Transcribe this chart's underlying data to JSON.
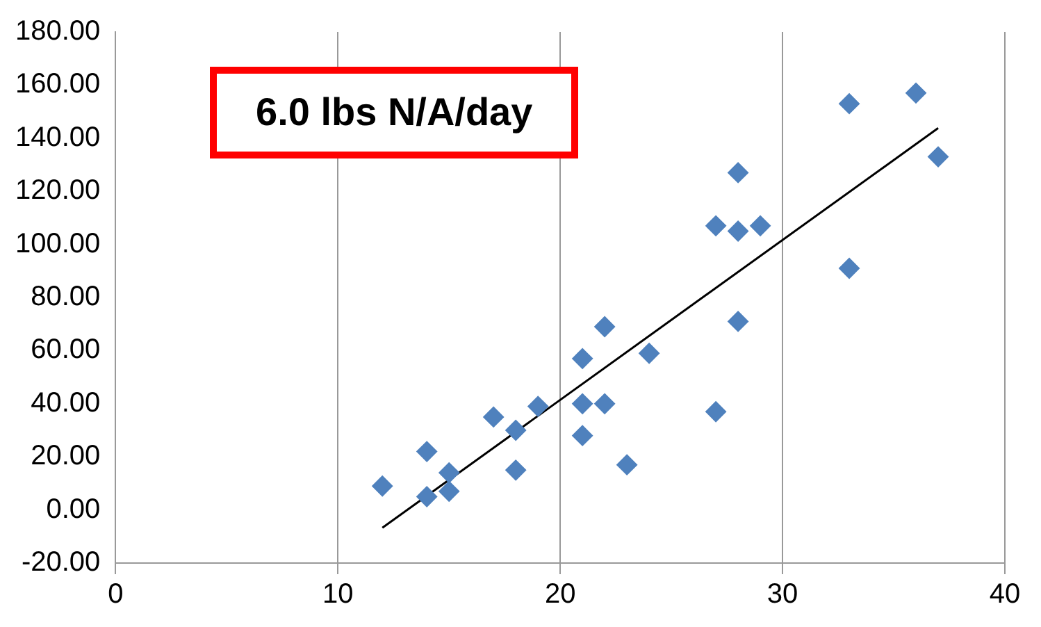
{
  "chart_data": {
    "type": "scatter",
    "annotations": [
      "6.0 lbs N/A/day"
    ],
    "x": [
      12,
      14,
      14,
      15,
      15,
      17,
      18,
      18,
      19,
      21,
      21,
      21,
      22,
      22,
      23,
      24,
      27,
      27,
      28,
      28,
      28,
      29,
      33,
      33,
      36,
      37
    ],
    "series": [
      {
        "color": "#4f81bd",
        "marker": "diamond",
        "values": [
          9,
          22,
          5,
          14,
          7,
          35,
          30,
          15,
          39,
          57,
          40,
          28,
          69,
          40,
          17,
          59,
          107,
          37,
          127,
          105,
          71,
          107,
          153,
          91,
          157,
          133
        ]
      },
      {
        "type": "line",
        "color": "#000000",
        "marker": "none",
        "x": [
          12,
          37
        ],
        "values": [
          -6.7,
          143.8
        ]
      }
    ],
    "xlim": [
      0,
      40
    ],
    "xticks": [
      0,
      10,
      20,
      30,
      40
    ],
    "ylim": [
      -20,
      180
    ],
    "yticks": [
      {
        "value": -20,
        "label": "-20.00"
      },
      {
        "value": 0,
        "label": "0.00"
      },
      {
        "value": 20,
        "label": "20.00"
      },
      {
        "value": 40,
        "label": "40.00"
      },
      {
        "value": 60,
        "label": "60.00"
      },
      {
        "value": 80,
        "label": "80.00"
      },
      {
        "value": 100,
        "label": "100.00"
      },
      {
        "value": 120,
        "label": "120.00"
      },
      {
        "value": 140,
        "label": "140.00"
      },
      {
        "value": 160,
        "label": "160.00"
      },
      {
        "value": 180,
        "label": "180.00"
      }
    ],
    "grid": "x",
    "legend": false
  }
}
